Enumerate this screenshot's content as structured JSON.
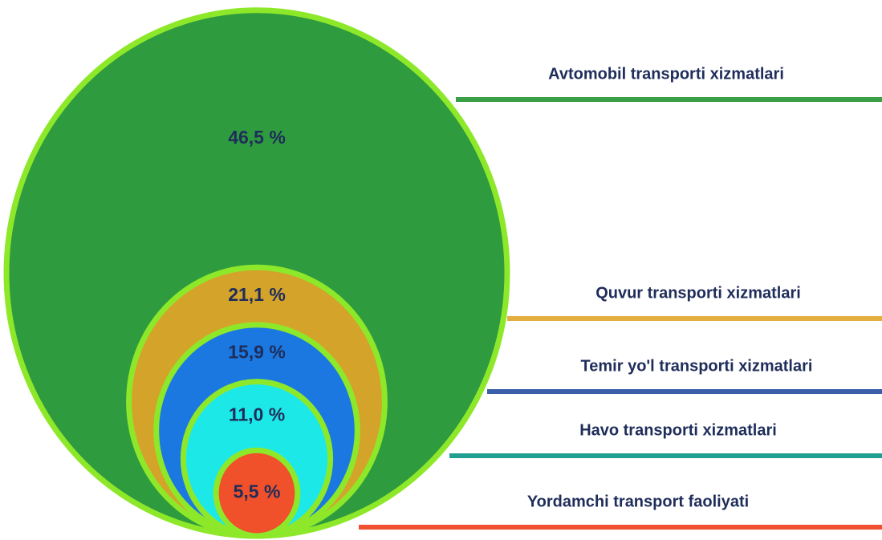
{
  "chart_data": {
    "type": "nested-bubble",
    "categories": [
      "Avtomobil transporti xizmatlari",
      "Quvur transporti xizmatlari",
      "Temir yo'l transporti xizmatlari",
      "Havo transporti xizmatlari",
      "Yordamchi transport faoliyati"
    ],
    "values": [
      46.5,
      21.1,
      15.9,
      11.0,
      5.5
    ],
    "value_labels": [
      "46,5 %",
      "21,1 %",
      "15,9 %",
      "11,0 %",
      "5,5 %"
    ],
    "colors": [
      "#2e9b3e",
      "#d4a32a",
      "#1a78e0",
      "#1de8e8",
      "#f0502a"
    ],
    "legend_colors": [
      "#3aa048",
      "#e3b040",
      "#3a5fa8",
      "#20a090",
      "#f05030"
    ]
  }
}
